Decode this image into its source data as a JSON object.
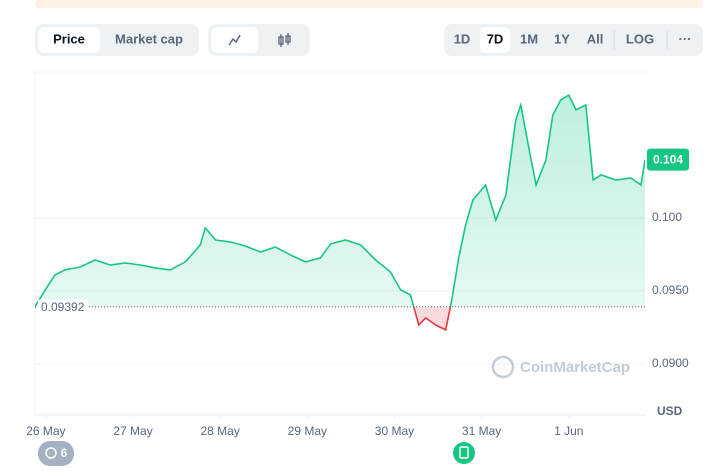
{
  "toolbar": {
    "tabs": [
      "Price",
      "Market cap"
    ],
    "ranges": [
      "1D",
      "7D",
      "1M",
      "1Y",
      "All",
      "LOG",
      "···"
    ]
  },
  "unit": "USD",
  "watermark": "CoinMarketCap",
  "badge_count": "6",
  "chart_data": {
    "type": "line",
    "x": [
      0,
      2.8,
      5.5,
      8.3,
      12.4,
      16.6,
      20.7,
      24.8,
      29,
      33.1,
      37.2,
      41.4,
      45.5,
      46.9,
      49.7,
      53.8,
      57.9,
      62.1,
      66.2,
      70.3,
      74.5,
      78.6,
      81.4,
      85.5,
      89.7,
      93.8,
      97.9,
      100.7,
      103.4,
      105.7,
      107.6,
      110.3,
      113.1,
      114.8,
      116.7,
      118.6,
      120.6,
      124.1,
      126.9,
      129.7,
      132.4,
      133.8,
      136.1,
      138,
      140.7,
      142.6,
      144.8,
      147,
      149,
      151.7,
      153.7,
      155.9,
      160,
      164.1,
      166.9,
      168
    ],
    "series": [
      {
        "color": "#16c784",
        "values": [
          0.09392,
          0.09507,
          0.0961,
          0.09644,
          0.09664,
          0.09712,
          0.09678,
          0.09692,
          0.09678,
          0.09658,
          0.09644,
          0.09699,
          0.09815,
          0.09932,
          0.09849,
          0.09836,
          0.09808,
          0.09767,
          0.09801,
          0.09747,
          0.09699,
          0.09726,
          0.09822,
          0.09849,
          0.09815,
          0.09712,
          0.0963,
          0.09507,
          0.09473,
          0.09267,
          0.09315,
          0.09267,
          0.09233,
          0.09438,
          0.09726,
          0.09952,
          0.10123,
          0.10226,
          0.09986,
          0.10158,
          0.10671,
          0.10774,
          0.10466,
          0.10226,
          0.10397,
          0.10705,
          0.10808,
          0.10842,
          0.1074,
          0.10774,
          0.1026,
          0.10295,
          0.1026,
          0.10274,
          0.10226,
          0.104
        ]
      }
    ],
    "below_color": "#ea3943",
    "baseline": 0.09392,
    "current_price": 0.104,
    "xlim": [
      0,
      168
    ],
    "xticks": [
      {
        "value": 3,
        "label": "26 May"
      },
      {
        "value": 27,
        "label": "27 May"
      },
      {
        "value": 51,
        "label": "28 May"
      },
      {
        "value": 75,
        "label": "29 May"
      },
      {
        "value": 99,
        "label": "30 May"
      },
      {
        "value": 123,
        "label": "31 May"
      },
      {
        "value": 147,
        "label": "1 Jun"
      }
    ],
    "ylim": [
      0.0865,
      0.11
    ],
    "yticks": [
      {
        "value": 0.09,
        "label": "0.0900"
      },
      {
        "value": 0.095,
        "label": "0.0950"
      },
      {
        "value": 0.1,
        "label": "0.100"
      }
    ],
    "grid": true
  }
}
